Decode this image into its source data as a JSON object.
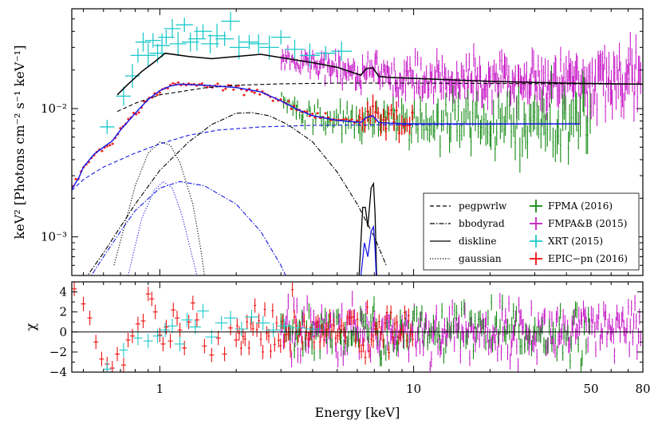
{
  "chart_data": {
    "type": "scatter",
    "xlabel": "Energy [keV]",
    "xscale": "log",
    "xlim": [
      0.45,
      80
    ],
    "x_tick_labels": [
      {
        "value": 1,
        "label": "1"
      },
      {
        "value": 10,
        "label": "10"
      },
      {
        "value": 50,
        "label": "50"
      },
      {
        "value": 80,
        "label": "80"
      }
    ],
    "panels": [
      {
        "id": "spectrum",
        "ylabel": "keV² [Photons cm⁻² s⁻¹ keV⁻¹]",
        "yscale": "log",
        "ylim": [
          0.0005,
          0.06
        ],
        "y_tick_labels": [
          {
            "value": 0.01,
            "label": "10⁻²"
          },
          {
            "value": 0.001,
            "label": "10⁻³"
          }
        ]
      },
      {
        "id": "residuals",
        "ylabel": "χ",
        "yscale": "linear",
        "ylim": [
          -4,
          5
        ],
        "y_tick_labels": [
          {
            "value": 4,
            "label": "4"
          },
          {
            "value": 2,
            "label": "2"
          },
          {
            "value": 0,
            "label": "0"
          },
          {
            "value": -2,
            "label": "−2"
          },
          {
            "value": -4,
            "label": "−4"
          }
        ]
      }
    ],
    "legend": {
      "placement": "lower-right",
      "models": [
        {
          "label": "pegpwrlw",
          "dash": "dashed"
        },
        {
          "label": "bbodyrad",
          "dash": "dashdot"
        },
        {
          "label": "diskline",
          "dash": "solid"
        },
        {
          "label": "gaussian",
          "dash": "dotted"
        }
      ],
      "datasets": [
        {
          "label": "FPMA (2016)",
          "color": "#138a13"
        },
        {
          "label": "FMPA&B (2015)",
          "color": "#c81ec8"
        },
        {
          "label": "XRT (2015)",
          "color": "#1ec8c8"
        },
        {
          "label": "EPIC−pn (2016)",
          "color": "#ee1111"
        }
      ]
    },
    "model_curves": {
      "colors": {
        "model_2015": "#000000",
        "model_2016": "#1a1ae6"
      },
      "total_2015": [
        [
          0.68,
          0.0128
        ],
        [
          0.75,
          0.0155
        ],
        [
          0.85,
          0.0195
        ],
        [
          0.95,
          0.023
        ],
        [
          1.05,
          0.027
        ],
        [
          1.3,
          0.0255
        ],
        [
          1.6,
          0.0245
        ],
        [
          2.0,
          0.0255
        ],
        [
          2.5,
          0.0265
        ],
        [
          3.0,
          0.025
        ],
        [
          4.0,
          0.0228
        ],
        [
          5.0,
          0.021
        ],
        [
          5.8,
          0.019
        ],
        [
          6.2,
          0.0182
        ],
        [
          6.5,
          0.0205
        ],
        [
          6.9,
          0.0208
        ],
        [
          7.3,
          0.0178
        ],
        [
          8,
          0.0175
        ],
        [
          10,
          0.0172
        ],
        [
          20,
          0.0163
        ],
        [
          40,
          0.0158
        ],
        [
          80,
          0.0155
        ]
      ],
      "pegpwrlw_2015": [
        [
          0.68,
          0.0095
        ],
        [
          0.8,
          0.011
        ],
        [
          1,
          0.0128
        ],
        [
          1.5,
          0.0145
        ],
        [
          2,
          0.0152
        ],
        [
          3,
          0.0156
        ],
        [
          5,
          0.0158
        ],
        [
          10,
          0.0158
        ],
        [
          20,
          0.0157
        ],
        [
          40,
          0.0156
        ],
        [
          80,
          0.0155
        ]
      ],
      "total_2016": [
        [
          0.45,
          0.00235
        ],
        [
          0.48,
          0.0029
        ],
        [
          0.5,
          0.0035
        ],
        [
          0.55,
          0.0044
        ],
        [
          0.6,
          0.005
        ],
        [
          0.65,
          0.0056
        ],
        [
          0.7,
          0.0068
        ],
        [
          0.8,
          0.0092
        ],
        [
          0.9,
          0.0118
        ],
        [
          1.0,
          0.0138
        ],
        [
          1.1,
          0.015
        ],
        [
          1.2,
          0.0155
        ],
        [
          1.5,
          0.0152
        ],
        [
          2.0,
          0.0146
        ],
        [
          2.5,
          0.0135
        ],
        [
          3.0,
          0.0115
        ],
        [
          3.5,
          0.0098
        ],
        [
          4.0,
          0.0088
        ],
        [
          5.0,
          0.0081
        ],
        [
          5.8,
          0.0079
        ],
        [
          6.2,
          0.0078
        ],
        [
          6.5,
          0.0085
        ],
        [
          6.9,
          0.0088
        ],
        [
          7.3,
          0.0078
        ],
        [
          8,
          0.0077
        ],
        [
          10,
          0.0076
        ],
        [
          20,
          0.0076
        ],
        [
          45,
          0.0076
        ]
      ],
      "pegpwrlw_2016": [
        [
          0.45,
          0.0023
        ],
        [
          0.5,
          0.0028
        ],
        [
          0.6,
          0.0035
        ],
        [
          0.8,
          0.0045
        ],
        [
          1.0,
          0.0053
        ],
        [
          1.3,
          0.0062
        ],
        [
          1.7,
          0.0068
        ],
        [
          2.5,
          0.0072
        ],
        [
          4,
          0.0074
        ],
        [
          10,
          0.0075
        ],
        [
          45,
          0.0076
        ]
      ],
      "bbodyrad_2016": [
        [
          0.45,
          0.0003
        ],
        [
          0.5,
          0.00045
        ],
        [
          0.6,
          0.00075
        ],
        [
          0.7,
          0.0012
        ],
        [
          0.8,
          0.0018
        ],
        [
          1.0,
          0.0033
        ],
        [
          1.3,
          0.0055
        ],
        [
          1.6,
          0.0075
        ],
        [
          2.0,
          0.0092
        ],
        [
          2.3,
          0.0093
        ],
        [
          2.7,
          0.0088
        ],
        [
          3.2,
          0.0075
        ],
        [
          4.0,
          0.0055
        ],
        [
          5.0,
          0.0032
        ],
        [
          6.0,
          0.0018
        ],
        [
          7.0,
          0.001
        ],
        [
          7.8,
          0.0006
        ]
      ],
      "bbodyrad_2016b": [
        [
          0.45,
          0.00025
        ],
        [
          0.5,
          0.0004
        ],
        [
          0.6,
          0.0007
        ],
        [
          0.7,
          0.0011
        ],
        [
          0.8,
          0.0016
        ],
        [
          1.0,
          0.0024
        ],
        [
          1.2,
          0.0027
        ],
        [
          1.5,
          0.0025
        ],
        [
          2.0,
          0.0018
        ],
        [
          2.5,
          0.0011
        ],
        [
          3.0,
          0.0006
        ],
        [
          3.4,
          0.00035
        ]
      ],
      "gaussian_2015": [
        [
          0.66,
          0.0006
        ],
        [
          0.8,
          0.0025
        ],
        [
          0.9,
          0.0045
        ],
        [
          1.0,
          0.0055
        ],
        [
          1.1,
          0.0052
        ],
        [
          1.2,
          0.0038
        ],
        [
          1.35,
          0.0018
        ],
        [
          1.45,
          0.0008
        ],
        [
          1.5,
          0.0005
        ]
      ],
      "gaussian_2016": [
        [
          0.75,
          0.0005
        ],
        [
          0.85,
          0.0014
        ],
        [
          0.95,
          0.0023
        ],
        [
          1.03,
          0.0027
        ],
        [
          1.12,
          0.0024
        ],
        [
          1.22,
          0.0015
        ],
        [
          1.32,
          0.0008
        ],
        [
          1.4,
          0.0005
        ]
      ],
      "diskline_2015": [
        [
          6.1,
          0.0005
        ],
        [
          6.3,
          0.0017
        ],
        [
          6.45,
          0.0017
        ],
        [
          6.6,
          0.0012
        ],
        [
          6.8,
          0.0024
        ],
        [
          6.95,
          0.0026
        ],
        [
          7.05,
          0.0015
        ],
        [
          7.15,
          0.0005
        ]
      ],
      "diskline_2016": [
        [
          6.2,
          0.0005
        ],
        [
          6.4,
          0.0009
        ],
        [
          6.6,
          0.0007
        ],
        [
          6.8,
          0.0011
        ],
        [
          6.95,
          0.0012
        ],
        [
          7.05,
          0.0008
        ],
        [
          7.12,
          0.0005
        ]
      ]
    },
    "datasets": [
      {
        "name": "FPMA (2016)",
        "color": "#138a13",
        "xrange": [
          3,
          50
        ],
        "level_at_3keV": 0.0095,
        "level_at_50keV": 0.0074,
        "scatter_dex": 0.09,
        "count": 170,
        "residual_sigma": 1.3
      },
      {
        "name": "FMPA&B (2015)",
        "color": "#c81ec8",
        "xrange": [
          3,
          79
        ],
        "level_at_3keV": 0.025,
        "level_at_50keV": 0.0155,
        "scatter_dex": 0.07,
        "count": 320,
        "residual_sigma": 1.3
      },
      {
        "name": "XRT (2015)",
        "color": "#1ec8c8",
        "points": [
          [
            0.62,
            0.0072
          ],
          [
            0.72,
            0.0125
          ],
          [
            0.78,
            0.018
          ],
          [
            0.82,
            0.026
          ],
          [
            0.86,
            0.033
          ],
          [
            0.9,
            0.026
          ],
          [
            0.94,
            0.034
          ],
          [
            0.98,
            0.027
          ],
          [
            1.02,
            0.031
          ],
          [
            1.06,
            0.036
          ],
          [
            1.12,
            0.042
          ],
          [
            1.18,
            0.032
          ],
          [
            1.25,
            0.045
          ],
          [
            1.32,
            0.033
          ],
          [
            1.4,
            0.035
          ],
          [
            1.48,
            0.04
          ],
          [
            1.58,
            0.032
          ],
          [
            1.68,
            0.037
          ],
          [
            1.8,
            0.035
          ],
          [
            1.9,
            0.048
          ],
          [
            2.05,
            0.03
          ],
          [
            2.25,
            0.033
          ],
          [
            2.45,
            0.032
          ],
          [
            2.7,
            0.03
          ],
          [
            3.0,
            0.036
          ],
          [
            3.4,
            0.029
          ],
          [
            3.9,
            0.026
          ],
          [
            4.5,
            0.027
          ],
          [
            5.2,
            0.028
          ]
        ],
        "residuals": [
          [
            0.62,
            -3.7
          ],
          [
            0.72,
            -1.8
          ],
          [
            0.82,
            -0.6
          ],
          [
            0.9,
            -0.9
          ],
          [
            0.98,
            -0.4
          ],
          [
            1.05,
            0.2
          ],
          [
            1.12,
            0.6
          ],
          [
            1.2,
            -1.2
          ],
          [
            1.28,
            1.2
          ],
          [
            1.38,
            0.5
          ],
          [
            1.48,
            2.1
          ],
          [
            1.6,
            -0.5
          ],
          [
            1.75,
            0.9
          ],
          [
            1.9,
            1.4
          ],
          [
            2.1,
            0.3
          ],
          [
            2.3,
            1.5
          ],
          [
            2.55,
            0.9
          ],
          [
            2.8,
            0.2
          ],
          [
            3.1,
            0.6
          ],
          [
            3.5,
            0.4
          ],
          [
            4.0,
            0.3
          ]
        ]
      },
      {
        "name": "EPIC−pn (2016)",
        "color": "#ee1111",
        "xrange": [
          0.45,
          10
        ],
        "count": 130,
        "residuals_low": [
          [
            0.46,
            4.3
          ],
          [
            0.5,
            2.8
          ],
          [
            0.53,
            1.4
          ],
          [
            0.56,
            -1.0
          ],
          [
            0.59,
            -2.7
          ],
          [
            0.62,
            -3.2
          ],
          [
            0.65,
            -3.6
          ],
          [
            0.68,
            -2.2
          ],
          [
            0.72,
            -3.3
          ],
          [
            0.75,
            -0.8
          ],
          [
            0.78,
            -0.4
          ],
          [
            0.82,
            0.8
          ],
          [
            0.86,
            1.1
          ],
          [
            0.9,
            3.8
          ],
          [
            0.93,
            3.3
          ],
          [
            0.96,
            2.0
          ],
          [
            1.0,
            -0.3
          ],
          [
            1.03,
            -1.2
          ],
          [
            1.06,
            0.5
          ],
          [
            1.1,
            -0.9
          ],
          [
            1.13,
            2.2
          ],
          [
            1.17,
            1.4
          ],
          [
            1.2,
            0.2
          ],
          [
            1.25,
            -1.6
          ],
          [
            1.3,
            1.0
          ],
          [
            1.35,
            2.9
          ],
          [
            1.4,
            1.2
          ],
          [
            1.5,
            -1.4
          ],
          [
            1.6,
            -2.3
          ],
          [
            1.7,
            -0.6
          ],
          [
            1.8,
            -2.2
          ],
          [
            1.9,
            0.4
          ],
          [
            2.0,
            -0.8
          ]
        ]
      }
    ]
  }
}
